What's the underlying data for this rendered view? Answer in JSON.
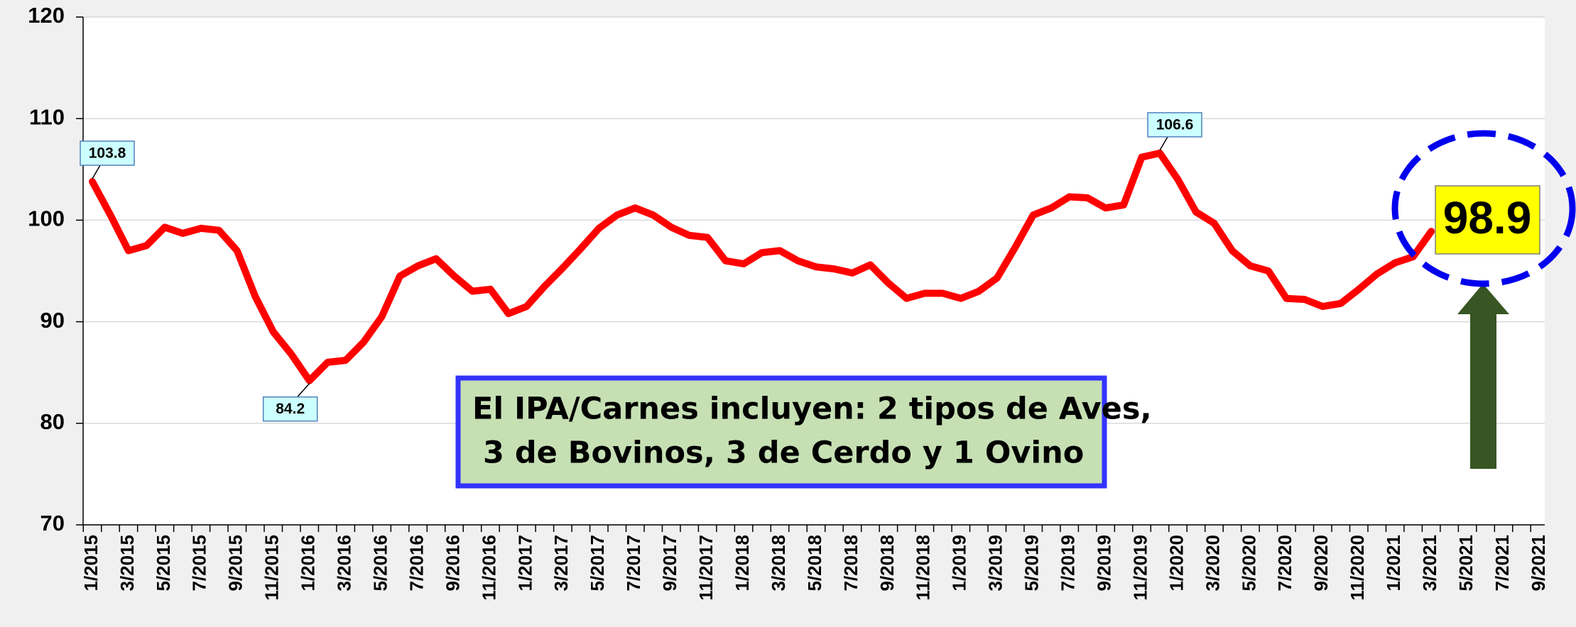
{
  "chart_data": {
    "type": "line",
    "categories": [
      "1/2015",
      null,
      "3/2015",
      null,
      "5/2015",
      null,
      "7/2015",
      null,
      "9/2015",
      null,
      "11/2015",
      null,
      "1/2016",
      null,
      "3/2016",
      null,
      "5/2016",
      null,
      "7/2016",
      null,
      "9/2016",
      null,
      "11/2016",
      null,
      "1/2017",
      null,
      "3/2017",
      null,
      "5/2017",
      null,
      "7/2017",
      null,
      "9/2017",
      null,
      "11/2017",
      null,
      "1/2018",
      null,
      "3/2018",
      null,
      "5/2018",
      null,
      "7/2018",
      null,
      "9/2018",
      null,
      "11/2018",
      null,
      "1/2019",
      null,
      "3/2019",
      null,
      "5/2019",
      null,
      "7/2019",
      null,
      "9/2019",
      null,
      "11/2019",
      null,
      "1/2020",
      null,
      "3/2020",
      null,
      "5/2020",
      null,
      "7/2020",
      null,
      "9/2020",
      null,
      "11/2020",
      null,
      "1/2021",
      null,
      "3/2021",
      null,
      "5/2021",
      null,
      "7/2021",
      null,
      "9/2021"
    ],
    "values": [
      103.8,
      100.5,
      97,
      97.5,
      99.3,
      98.7,
      99.2,
      99,
      97,
      92.5,
      89,
      86.8,
      84.2,
      86,
      86.2,
      88,
      90.5,
      94.5,
      95.5,
      96.2,
      94.5,
      93,
      93.2,
      90.8,
      91.5,
      93.5,
      95.3,
      97.2,
      99.2,
      100.5,
      101.2,
      100.5,
      99.3,
      98.5,
      98.3,
      96,
      95.7,
      96.8,
      97,
      96,
      95.4,
      95.2,
      94.8,
      95.6,
      93.8,
      92.3,
      92.8,
      92.8,
      92.3,
      93,
      94.3,
      97.3,
      100.5,
      101.2,
      102.3,
      102.2,
      101.2,
      101.5,
      106.2,
      106.6,
      104,
      100.8,
      99.7,
      97,
      95.5,
      95,
      92.3,
      92.2,
      91.5,
      91.8,
      93.2,
      94.7,
      95.8,
      96.4,
      98.9,
      null,
      null,
      null,
      null,
      null,
      null
    ],
    "value_labels": [
      "103.8",
      null,
      null,
      null,
      null,
      null,
      null,
      null,
      null,
      null,
      null,
      null,
      "84.2",
      null,
      null,
      null,
      null,
      null,
      null,
      null,
      null,
      null,
      null,
      null,
      null,
      null,
      null,
      null,
      null,
      null,
      null,
      null,
      null,
      null,
      null,
      null,
      null,
      null,
      null,
      null,
      null,
      null,
      null,
      null,
      null,
      null,
      null,
      null,
      null,
      null,
      null,
      null,
      null,
      null,
      null,
      null,
      null,
      null,
      null,
      "106.6",
      null,
      null,
      null,
      null,
      null,
      null,
      null,
      null,
      null,
      null,
      null,
      null,
      null,
      null,
      "98.9",
      null,
      null,
      null,
      null,
      null,
      null
    ],
    "color": "#ff0000",
    "ylim": [
      70,
      120
    ],
    "yticks": [
      70,
      80,
      90,
      100,
      110,
      120
    ],
    "grid": true,
    "note": [
      "El IPA/Carnes incluyen: 2 tipos de Aves,",
      " 3 de Bovinos, 3 de Cerdo y 1 Ovino"
    ]
  }
}
